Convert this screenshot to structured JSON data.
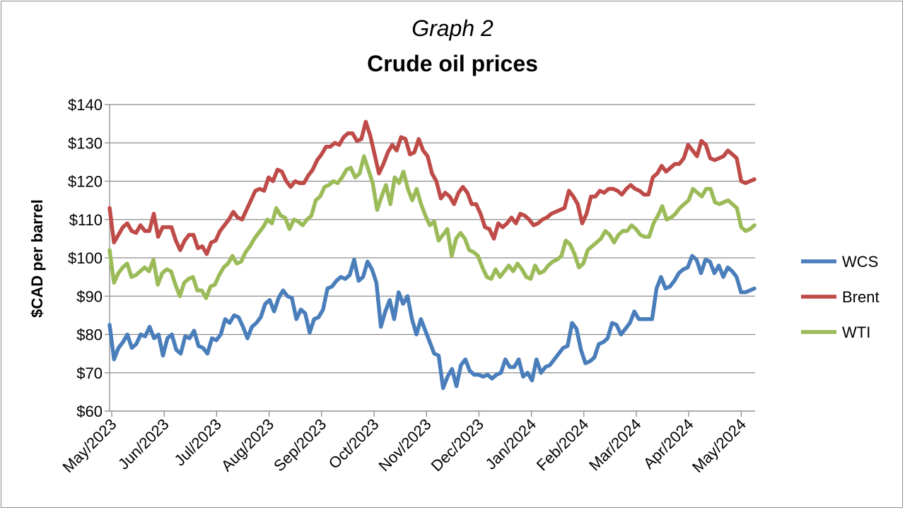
{
  "chart_data": {
    "type": "line",
    "title_line1": "Graph 2",
    "title": "Crude oil prices",
    "ylabel": "$CAD per barrel",
    "xlabel": "",
    "ylim": [
      60,
      140
    ],
    "y_ticks": [
      "$60",
      "$70",
      "$80",
      "$90",
      "$100",
      "$110",
      "$120",
      "$130",
      "$140"
    ],
    "x_ticks": [
      "May/2023",
      "Jun/2023",
      "Jul/2023",
      "Aug/2023",
      "Sep/2023",
      "Oct/2023",
      "Nov/2023",
      "Dec/2023",
      "Jan/2024",
      "Feb/2024",
      "Mar/2024",
      "Apr/2024",
      "May/2024"
    ],
    "grid": true,
    "legend_position": "right",
    "series": [
      {
        "name": "WCS",
        "color": "#4a7ebb",
        "values": [
          82.5,
          73.5,
          76.5,
          78,
          80,
          76.5,
          77.5,
          80,
          79.5,
          82,
          79,
          80,
          74.5,
          79,
          80,
          76,
          75,
          79.5,
          79,
          81,
          77,
          76.5,
          75,
          79,
          78.5,
          80,
          84,
          83,
          85,
          84.5,
          82,
          79,
          82,
          83,
          84.5,
          88,
          89,
          86,
          89.5,
          91.5,
          90,
          89.5,
          84,
          86.5,
          85.5,
          80.5,
          84,
          84.5,
          86.5,
          92,
          92.5,
          94,
          95,
          94.5,
          95.5,
          99.5,
          94,
          95,
          99,
          97,
          93.5,
          82,
          86,
          89,
          84,
          91,
          88,
          90,
          84,
          80,
          84,
          81,
          78,
          75,
          74.5,
          66,
          69,
          71,
          66.5,
          72,
          73.5,
          70.5,
          69.5,
          69.5,
          69,
          69.5,
          68.5,
          69.5,
          70,
          73.5,
          71.5,
          71.5,
          73.5,
          69,
          70,
          68,
          73.5,
          70,
          71.5,
          72,
          73.5,
          75,
          76.5,
          77,
          83,
          81.5,
          76,
          72.5,
          73,
          74,
          77.5,
          78,
          79,
          83,
          82.5,
          80,
          81.5,
          83,
          86,
          84,
          84,
          84,
          84,
          92,
          95,
          92,
          92.5,
          94,
          96,
          97,
          97.5,
          100.5,
          99.5,
          96,
          99.5,
          99,
          96,
          98,
          95,
          97.5,
          96.5,
          95,
          91,
          91,
          91.5,
          92
        ]
      },
      {
        "name": "Brent",
        "color": "#be4b48",
        "values": [
          113,
          104,
          106,
          108,
          109,
          107,
          106.5,
          108.5,
          107,
          107,
          111.5,
          105.5,
          108,
          108,
          108,
          104.5,
          102,
          104.5,
          106,
          106,
          102.5,
          103,
          101,
          104,
          104.5,
          107,
          108.5,
          110,
          112,
          110.5,
          110,
          112.5,
          115,
          117.5,
          118,
          117.5,
          121,
          120,
          123,
          122.5,
          120,
          118.5,
          120,
          119.5,
          119.5,
          121.5,
          123,
          125.5,
          127,
          129,
          129,
          130,
          129.5,
          131.5,
          132.5,
          132.5,
          130.5,
          131,
          135.5,
          132,
          127,
          122,
          124.5,
          127.5,
          129.5,
          128,
          131.5,
          131,
          127,
          127.5,
          131,
          128,
          126.5,
          122,
          120,
          115.5,
          117,
          116,
          114,
          117,
          118.5,
          117,
          114,
          114,
          111.5,
          108,
          107.5,
          105,
          109,
          108,
          109,
          110.5,
          109,
          111.5,
          111,
          110,
          108.5,
          109,
          110,
          110.5,
          111.5,
          112,
          112.5,
          113,
          117.5,
          116,
          114,
          109,
          111.5,
          116,
          116,
          117.5,
          117,
          118,
          118,
          117.5,
          116.5,
          118,
          119,
          118,
          117.5,
          116.5,
          116.5,
          121,
          122,
          124,
          122.5,
          123.5,
          124.5,
          124.5,
          126,
          129.5,
          128,
          126.5,
          130.5,
          129.5,
          126,
          125.5,
          126,
          126.5,
          128,
          127,
          126,
          120,
          119.5,
          120,
          120.5
        ]
      },
      {
        "name": "WTI",
        "color": "#9bbb59",
        "values": [
          102,
          93.5,
          96,
          97.5,
          98.5,
          95,
          95.5,
          96.5,
          97.5,
          96.5,
          99.5,
          93,
          96,
          97,
          96.5,
          93,
          90,
          93.5,
          94.5,
          95,
          91.5,
          91.5,
          89.5,
          92.5,
          93,
          95.5,
          97.5,
          98.5,
          100.5,
          98.5,
          99,
          101.5,
          103,
          105,
          106.5,
          108,
          110,
          109,
          113,
          111,
          110.5,
          107.5,
          110,
          109.5,
          108.5,
          110,
          111,
          115,
          116,
          118.5,
          119,
          120,
          119.5,
          121,
          123,
          123.5,
          121,
          122,
          126.5,
          123,
          119.5,
          112.5,
          116,
          119,
          114,
          121,
          119.5,
          122.5,
          118,
          115,
          118,
          114,
          111,
          108.5,
          109.5,
          104.5,
          106,
          107.5,
          100.5,
          105,
          106.5,
          105,
          102,
          101.5,
          100.5,
          97.5,
          95,
          94.5,
          97,
          95,
          96.5,
          98,
          96.5,
          98.5,
          97,
          95,
          94.5,
          98,
          96,
          96.5,
          98,
          99,
          99.5,
          100.5,
          104.5,
          103.5,
          101,
          97.5,
          98.5,
          102,
          103,
          104,
          105,
          107,
          106,
          104,
          106,
          107,
          107,
          108.5,
          107.5,
          106,
          105.5,
          105.5,
          109,
          111,
          113.5,
          110,
          110.5,
          111.5,
          113,
          114,
          115,
          118,
          117,
          116,
          118,
          118,
          114.5,
          114,
          114.5,
          115,
          114,
          113,
          108,
          107,
          107.5,
          108.5
        ]
      }
    ]
  }
}
